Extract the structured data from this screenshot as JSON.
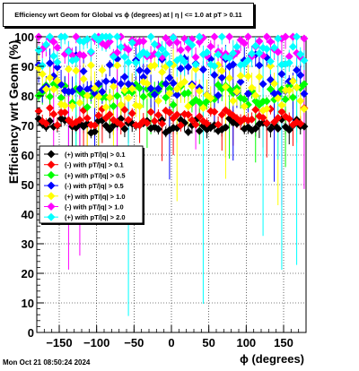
{
  "chart_data": {
    "type": "scatter",
    "title": "Efficiency wrt Geom for Global vs ϕ (degrees) at |  η | <= 1.0 at pT > 0.11",
    "xlabel": "ϕ (degrees)",
    "ylabel": "Efficiency wrt Geom (%)",
    "xlim": [
      -180,
      180
    ],
    "ylim": [
      0,
      100
    ],
    "x_ticks": [
      -150,
      -100,
      -50,
      0,
      50,
      100,
      150
    ],
    "y_ticks": [
      0,
      10,
      20,
      30,
      40,
      50,
      60,
      70,
      80,
      90,
      100
    ],
    "x_tick_labels": [
      "−150",
      "−100",
      "−50",
      "0",
      "50",
      "100",
      "150"
    ],
    "y_tick_labels": [
      "0",
      "10",
      "20",
      "30",
      "40",
      "50",
      "60",
      "70",
      "80",
      "90",
      "100"
    ],
    "grid": true,
    "legend_position": "middle-left",
    "series": [
      {
        "name": "(+) with pT/|q| > 0.1",
        "color": "#000000",
        "marker": "diamond",
        "center": 70,
        "spread": 2.5,
        "low_err": 4
      },
      {
        "name": "(-) with pT/|q| > 0.1",
        "color": "#ff0000",
        "marker": "diamond",
        "center": 73,
        "spread": 3,
        "low_err": 5
      },
      {
        "name": "(+) with pT/|q| > 0.5",
        "color": "#00ff00",
        "marker": "diamond",
        "center": 80,
        "spread": 4,
        "low_err": 8
      },
      {
        "name": "(-) with pT/|q| > 0.5",
        "color": "#0000ff",
        "marker": "diamond",
        "center": 87,
        "spread": 7,
        "low_err": 12
      },
      {
        "name": "(+) with pT/|q| > 1.0",
        "color": "#ffff00",
        "marker": "diamond",
        "center": 83,
        "spread": 8,
        "low_err": 15
      },
      {
        "name": "(-) with pT/|q| > 1.0",
        "color": "#ff00ff",
        "marker": "diamond",
        "center": 97,
        "spread": 4,
        "low_err": 25
      },
      {
        "name": "(+) with pT/|q| > 2.0",
        "color": "#00ffff",
        "marker": "diamond",
        "center": 96,
        "spread": 6,
        "low_err": 30
      }
    ],
    "n_bins": 72
  },
  "timestamp": "Mon Oct 21 08:50:24 2024"
}
